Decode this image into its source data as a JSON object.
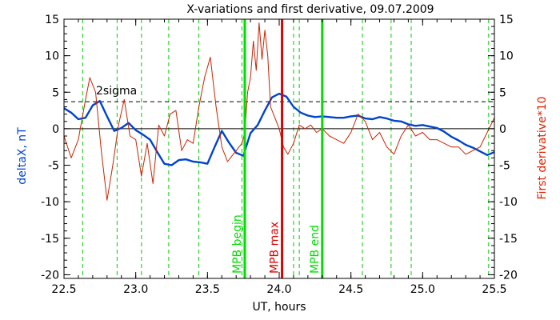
{
  "chart_data": {
    "type": "line",
    "title": "X-variations and first derivative, 09.07.2009",
    "xlabel": "UT, hours",
    "ylabel_left": "deltaX, nT",
    "ylabel_right": "First derivative*10",
    "xlim": [
      22.5,
      25.5
    ],
    "ylim": [
      -20.5,
      15
    ],
    "x_ticks": [
      "22.5",
      "23.0",
      "23.5",
      "24.0",
      "24.5",
      "25.0",
      "25.5"
    ],
    "y_ticks": [
      "15",
      "10",
      "5",
      "0",
      "-5",
      "-10",
      "-15",
      "-20"
    ],
    "threshold": {
      "label": "2sigma",
      "value": 3.7,
      "color": "#000000"
    },
    "zero_line": 0,
    "green_dashed_x": [
      22.63,
      22.87,
      23.04,
      23.23,
      23.44,
      23.74,
      24.1,
      24.14,
      24.58,
      24.78,
      24.92,
      25.46
    ],
    "markers": [
      {
        "label": "MPB begin",
        "x": 23.76,
        "color": "#00dd00"
      },
      {
        "label": "MPB max",
        "x": 24.02,
        "color": "#dd0000"
      },
      {
        "label": "MPB end",
        "x": 24.3,
        "color": "#00dd00"
      }
    ],
    "series": [
      {
        "color": "#0044cc",
        "x": [
          22.5,
          22.55,
          22.6,
          22.65,
          22.7,
          22.75,
          22.8,
          22.85,
          22.9,
          22.95,
          23.0,
          23.05,
          23.1,
          23.15,
          23.2,
          23.25,
          23.3,
          23.35,
          23.4,
          23.45,
          23.5,
          23.55,
          23.6,
          23.65,
          23.7,
          23.75,
          23.8,
          23.85,
          23.9,
          23.95,
          24.0,
          24.05,
          24.1,
          24.15,
          24.2,
          24.25,
          24.3,
          24.35,
          24.4,
          24.45,
          24.5,
          24.55,
          24.6,
          24.65,
          24.7,
          24.75,
          24.8,
          24.85,
          24.9,
          24.95,
          25.0,
          25.05,
          25.1,
          25.15,
          25.2,
          25.25,
          25.3,
          25.35,
          25.4,
          25.45,
          25.5
        ],
        "values": [
          2.8,
          2.2,
          1.3,
          1.5,
          3.2,
          3.8,
          1.7,
          -0.3,
          0.1,
          0.8,
          -0.2,
          -0.8,
          -1.5,
          -3.2,
          -4.8,
          -5.0,
          -4.3,
          -4.2,
          -4.5,
          -4.6,
          -4.8,
          -2.5,
          -0.3,
          -1.9,
          -3.3,
          -3.7,
          -0.6,
          0.5,
          2.5,
          4.3,
          4.8,
          4.4,
          3.0,
          2.2,
          1.8,
          1.6,
          1.7,
          1.6,
          1.5,
          1.5,
          1.7,
          1.8,
          1.4,
          1.3,
          1.6,
          1.4,
          1.1,
          1.0,
          0.6,
          0.4,
          0.5,
          0.3,
          0.1,
          -0.4,
          -1.1,
          -1.6,
          -2.2,
          -2.6,
          -3.1,
          -3.6,
          -3.2
        ]
      },
      {
        "color": "#cc2200",
        "x": [
          22.5,
          22.55,
          22.6,
          22.65,
          22.68,
          22.72,
          22.76,
          22.8,
          22.84,
          22.88,
          22.92,
          22.96,
          23.0,
          23.04,
          23.08,
          23.12,
          23.16,
          23.2,
          23.24,
          23.28,
          23.32,
          23.36,
          23.4,
          23.44,
          23.48,
          23.52,
          23.56,
          23.6,
          23.64,
          23.68,
          23.72,
          23.74,
          23.76,
          23.78,
          23.8,
          23.82,
          23.84,
          23.86,
          23.88,
          23.9,
          23.92,
          23.94,
          23.97,
          24.0,
          24.03,
          24.06,
          24.1,
          24.14,
          24.18,
          24.22,
          24.26,
          24.3,
          24.35,
          24.4,
          24.45,
          24.5,
          24.55,
          24.6,
          24.65,
          24.7,
          24.75,
          24.8,
          24.85,
          24.9,
          24.95,
          25.0,
          25.05,
          25.1,
          25.15,
          25.2,
          25.25,
          25.3,
          25.35,
          25.4,
          25.45,
          25.5
        ],
        "values": [
          -1.0,
          -4.0,
          -1.5,
          4.0,
          7.0,
          5.0,
          -3.0,
          -9.8,
          -5.0,
          0.5,
          4.0,
          -1.0,
          -1.5,
          -6.5,
          -2.0,
          -7.5,
          0.5,
          -1.0,
          2.0,
          2.5,
          -3.0,
          -1.5,
          -2.0,
          3.0,
          7.0,
          9.8,
          3.0,
          -2.5,
          -4.5,
          -3.5,
          -2.5,
          -2.0,
          -0.5,
          5.0,
          7.0,
          12.0,
          8.0,
          14.5,
          9.5,
          13.5,
          10.0,
          3.0,
          1.5,
          0.0,
          -2.5,
          -3.5,
          -2.0,
          0.5,
          0.0,
          0.5,
          -0.5,
          0.0,
          -1.0,
          -1.5,
          -2.0,
          -0.5,
          2.0,
          1.0,
          -1.5,
          -0.5,
          -2.5,
          -3.5,
          -1.0,
          0.5,
          -1.0,
          -0.5,
          -1.5,
          -1.5,
          -2.0,
          -2.5,
          -2.5,
          -3.5,
          -3.0,
          -2.5,
          -0.5,
          1.5
        ]
      }
    ]
  }
}
